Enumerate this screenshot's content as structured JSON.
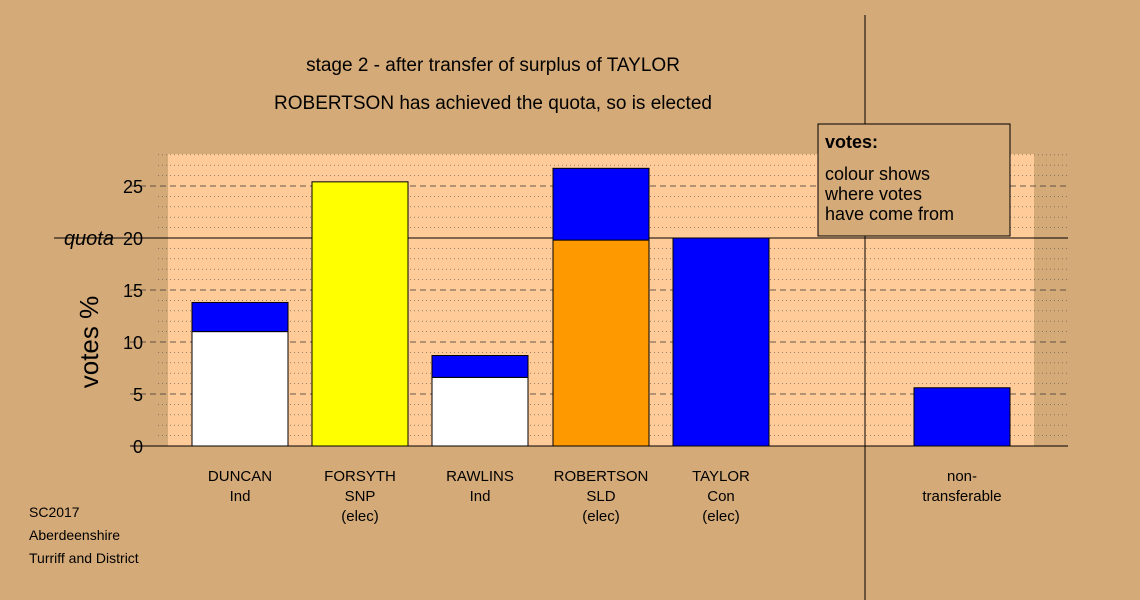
{
  "chart_data": {
    "type": "bar",
    "title": "stage 2 - after transfer of surplus of TAYLOR",
    "subtitle": "ROBERTSON has achieved the quota, so is elected",
    "ylabel": "votes %",
    "ylim": [
      0,
      28
    ],
    "yticks": [
      0,
      5,
      10,
      15,
      20,
      25
    ],
    "quota": 20,
    "quota_label": "quota",
    "legend": {
      "heading": "votes:",
      "lines": [
        "colour shows",
        "where votes",
        "have come from"
      ],
      "position": "top-right"
    },
    "candidates": [
      {
        "name": "DUNCAN",
        "party": "Ind",
        "status": "",
        "segments": [
          {
            "value": 11.0,
            "color": "#ffffff"
          },
          {
            "value": 2.8,
            "color": "#0000ff"
          }
        ]
      },
      {
        "name": "FORSYTH",
        "party": "SNP",
        "status": "(elec)",
        "segments": [
          {
            "value": 25.4,
            "color": "#ffff00"
          }
        ]
      },
      {
        "name": "RAWLINS",
        "party": "Ind",
        "status": "",
        "segments": [
          {
            "value": 6.6,
            "color": "#ffffff"
          },
          {
            "value": 2.1,
            "color": "#0000ff"
          }
        ]
      },
      {
        "name": "ROBERTSON",
        "party": "SLD",
        "status": "(elec)",
        "segments": [
          {
            "value": 19.8,
            "color": "#ff9900"
          },
          {
            "value": 6.9,
            "color": "#0000ff"
          }
        ]
      },
      {
        "name": "TAYLOR",
        "party": "Con",
        "status": "(elec)",
        "segments": [
          {
            "value": 20.0,
            "color": "#0000ff"
          }
        ]
      }
    ],
    "nontransferable": {
      "label_lines": [
        "non-",
        "transferable"
      ],
      "segments": [
        {
          "value": 5.6,
          "color": "#0000ff"
        }
      ]
    }
  },
  "source": {
    "lines": [
      "SC2017",
      "Aberdeenshire",
      "Turriff and District"
    ]
  }
}
